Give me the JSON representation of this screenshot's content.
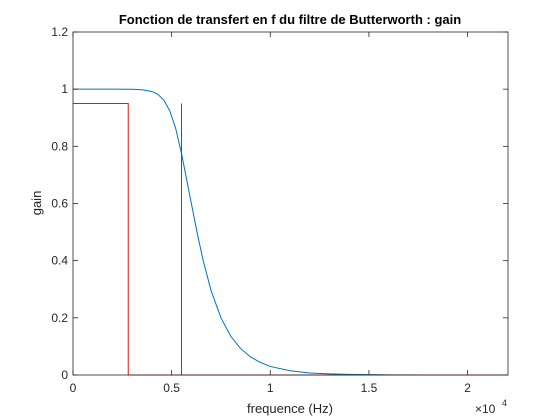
{
  "chart_data": {
    "type": "line",
    "title": "Fonction de transfert en f du filtre de Butterworth : gain",
    "xlabel": "frequence (Hz)",
    "ylabel": "gain",
    "xlim": [
      0,
      22050
    ],
    "ylim": [
      0,
      1.2
    ],
    "xticks": [
      0,
      5000,
      10000,
      15000,
      20000
    ],
    "xtick_labels": [
      "0",
      "0.5",
      "1",
      "1.5",
      "2"
    ],
    "x_exponent": {
      "base": "×10",
      "power": "4"
    },
    "yticks": [
      0,
      0.2,
      0.4,
      0.6,
      0.8,
      1,
      1.2
    ],
    "ytick_labels": [
      "0",
      "0.2",
      "0.4",
      "0.6",
      "0.8",
      "1",
      "1.2"
    ],
    "grid": false,
    "series": [
      {
        "color": "#0072BD",
        "points": [
          [
            0,
            1.0
          ],
          [
            2000,
            1.0
          ],
          [
            3000,
            0.9997
          ],
          [
            3500,
            0.998
          ],
          [
            4000,
            0.992
          ],
          [
            4300,
            0.982
          ],
          [
            4600,
            0.962
          ],
          [
            4900,
            0.925
          ],
          [
            5200,
            0.864
          ],
          [
            5500,
            0.775
          ],
          [
            5700,
            0.705
          ],
          [
            6000,
            0.6
          ],
          [
            6300,
            0.495
          ],
          [
            6600,
            0.4
          ],
          [
            7000,
            0.295
          ],
          [
            7500,
            0.2
          ],
          [
            8000,
            0.135
          ],
          [
            8500,
            0.092
          ],
          [
            9000,
            0.063
          ],
          [
            9500,
            0.044
          ],
          [
            10000,
            0.03
          ],
          [
            11000,
            0.015
          ],
          [
            12000,
            0.007
          ],
          [
            13000,
            0.004
          ],
          [
            14000,
            0.002
          ],
          [
            16000,
            0.0006
          ],
          [
            18000,
            0.0002
          ],
          [
            22050,
            0.0
          ]
        ]
      },
      {
        "color": "#D9171A",
        "points": [
          [
            0,
            0.95
          ],
          [
            2800,
            0.95
          ],
          [
            2800,
            0.0
          ],
          [
            5500,
            0.0
          ],
          [
            5500,
            0.95
          ],
          [
            5500,
            0.0
          ],
          [
            22050,
            0.0
          ]
        ]
      }
    ]
  }
}
